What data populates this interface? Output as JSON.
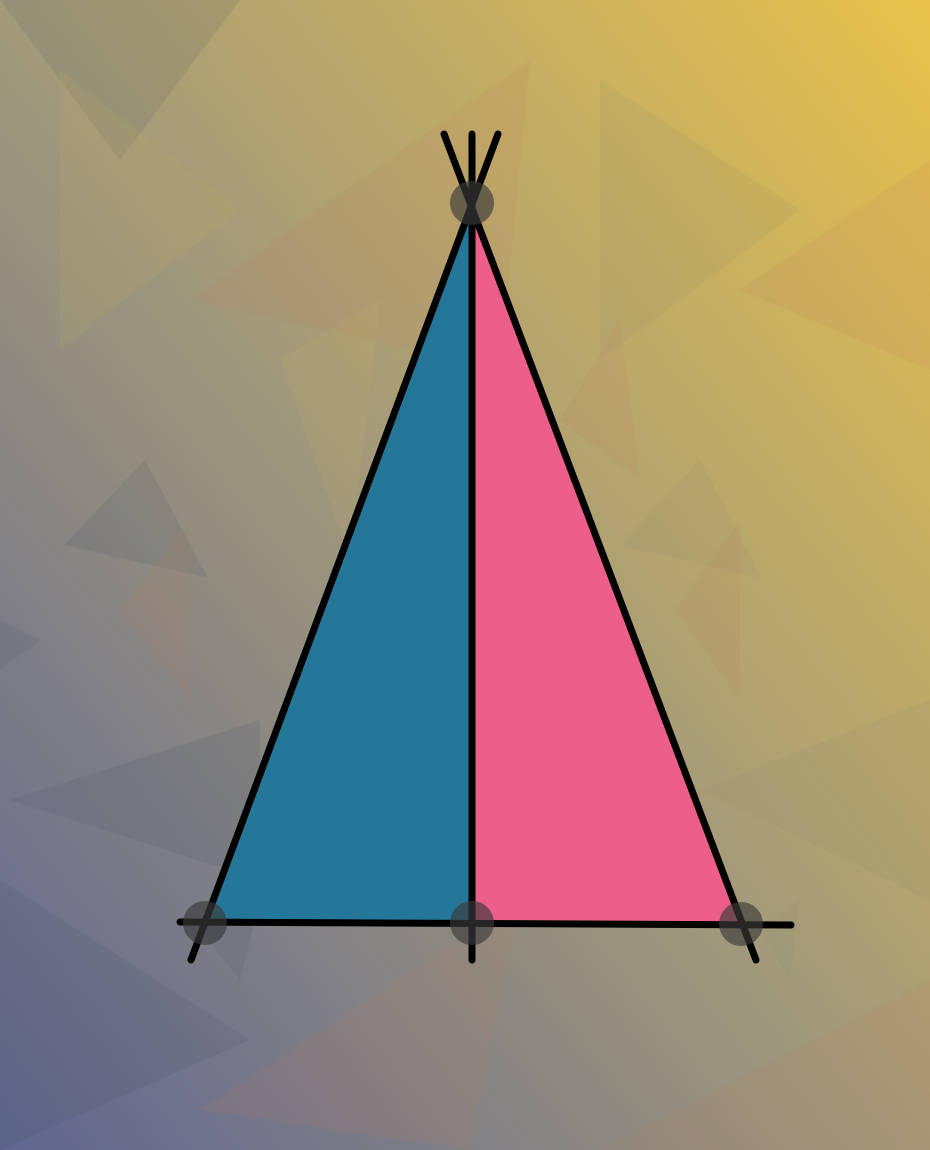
{
  "puzzle": {
    "kind": "triangle-split",
    "pieces": [
      {
        "name": "left-half",
        "fill": "#25779a"
      },
      {
        "name": "right-half",
        "fill": "#ec5f8b"
      }
    ],
    "line_color": "#000000",
    "vertex_marker_color": "#3a3a3a"
  },
  "background": {
    "gradient_start": "#5f6690",
    "gradient_mid": "#a39a7a",
    "gradient_end": "#e8c24a",
    "shard_colors": [
      "#3b4a5c",
      "#c07a5a",
      "#d0b060",
      "#8a8a70"
    ]
  }
}
